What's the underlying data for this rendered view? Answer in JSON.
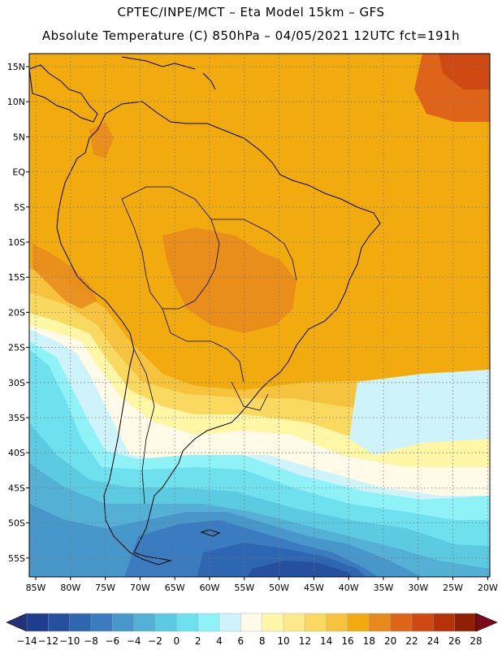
{
  "header": {
    "line1": "CPTEC/INPE/MCT –   Eta Model 15km – GFS",
    "line2": "Absolute Temperature (C) 850hPa – 04/05/2021 12UTC fct=191h"
  },
  "map": {
    "lat_labels": [
      "15N",
      "10N",
      "5N",
      "EQ",
      "5S",
      "10S",
      "15S",
      "20S",
      "25S",
      "30S",
      "35S",
      "40S",
      "45S",
      "50S",
      "55S"
    ],
    "lon_labels": [
      "85W",
      "80W",
      "75W",
      "70W",
      "65W",
      "60W",
      "55W",
      "50W",
      "45W",
      "40W",
      "35W",
      "30W",
      "25W",
      "20W"
    ],
    "gridlines": "dotted"
  },
  "legend": {
    "labels": [
      "-14",
      "-12",
      "-10",
      "-8",
      "-6",
      "-4",
      "-2",
      "0",
      "2",
      "4",
      "6",
      "8",
      "10",
      "12",
      "14",
      "16",
      "18",
      "20",
      "22",
      "24",
      "26",
      "28"
    ],
    "colors": [
      "#1e3d8f",
      "#24509f",
      "#2d66b1",
      "#3a7cbf",
      "#4797cb",
      "#55b0d6",
      "#5ccbe2",
      "#6fe0ee",
      "#8ef2f7",
      "#cff3fb",
      "#fffbe8",
      "#fff6a6",
      "#fde98a",
      "#fad960",
      "#f5c33e",
      "#f2ab0f",
      "#e8891d",
      "#de641a",
      "#cf4a12",
      "#b63208",
      "#8f2006"
    ],
    "underflow_color": "#23307a",
    "overflow_color": "#7a0a1a"
  }
}
